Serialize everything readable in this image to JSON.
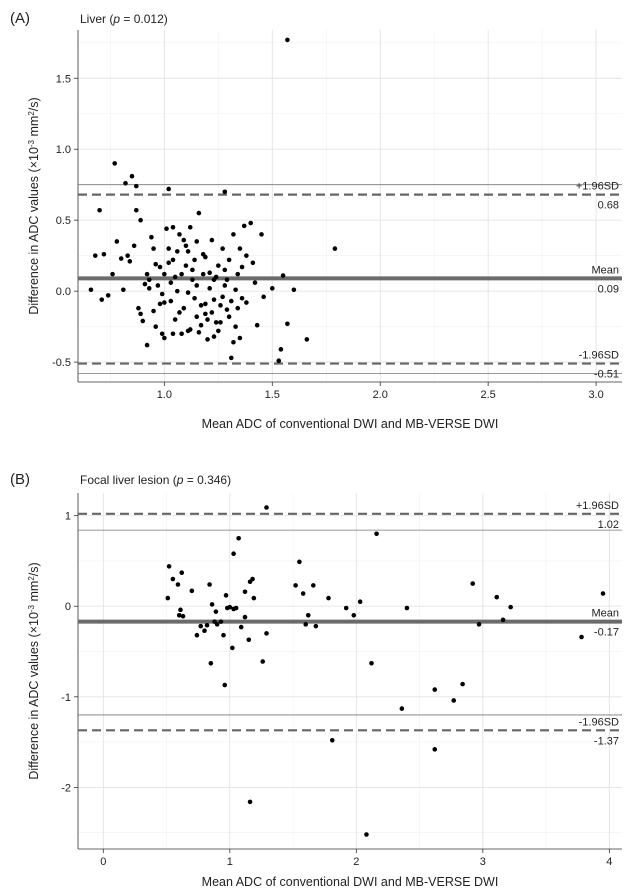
{
  "chart_data": [
    {
      "type": "scatter",
      "panel_label": "(A)",
      "title_prefix": "Liver",
      "title_p_symbol": "p",
      "title_p_value": " = 0.012",
      "xlabel": "Mean ADC of conventional DWI and MB-VERSE DWI",
      "ylabel_prefix": "Difference in ADC values (×10",
      "ylabel_exponent": "-3",
      "ylabel_unit": " mm",
      "ylabel_unit_exponent": "2",
      "ylabel_suffix": "/s)",
      "xlim": [
        0.6,
        3.12
      ],
      "ylim": [
        -0.64,
        1.84
      ],
      "x_ticks": [
        1.0,
        1.5,
        2.0,
        2.5,
        3.0
      ],
      "x_tick_labels": [
        "1.0",
        "1.5",
        "2.0",
        "2.5",
        "3.0"
      ],
      "y_ticks": [
        -0.5,
        0.0,
        0.5,
        1.0,
        1.5
      ],
      "y_tick_labels": [
        "-0.5",
        "0.0",
        "0.5",
        "1.0",
        "1.5"
      ],
      "grid": true,
      "reference_lines": [
        {
          "name": "upper-loa",
          "value": 0.68,
          "style": "dashed",
          "label": "+1.96SD",
          "value_label": "0.68",
          "ci_value": 0.75
        },
        {
          "name": "mean",
          "value": 0.09,
          "style": "solid-thick",
          "label": "Mean",
          "value_label": "0.09"
        },
        {
          "name": "lower-loa",
          "value": -0.51,
          "style": "dashed",
          "label": "-1.96SD",
          "value_label": "-0.51",
          "ci_value": -0.58
        }
      ],
      "points": [
        [
          0.77,
          0.9
        ],
        [
          0.82,
          0.76
        ],
        [
          0.85,
          0.81
        ],
        [
          0.87,
          0.74
        ],
        [
          1.02,
          0.72
        ],
        [
          1.28,
          0.7
        ],
        [
          1.57,
          1.77
        ],
        [
          1.79,
          0.3
        ],
        [
          0.66,
          0.01
        ],
        [
          0.68,
          0.25
        ],
        [
          0.7,
          0.57
        ],
        [
          0.71,
          -0.06
        ],
        [
          0.72,
          0.26
        ],
        [
          0.74,
          -0.03
        ],
        [
          0.76,
          0.12
        ],
        [
          0.78,
          0.35
        ],
        [
          0.8,
          0.23
        ],
        [
          0.81,
          0.01
        ],
        [
          0.83,
          0.25
        ],
        [
          0.84,
          0.21
        ],
        [
          0.86,
          0.32
        ],
        [
          0.87,
          0.57
        ],
        [
          0.88,
          -0.12
        ],
        [
          0.89,
          0.5
        ],
        [
          0.9,
          -0.21
        ],
        [
          0.91,
          0.05
        ],
        [
          0.92,
          0.12
        ],
        [
          0.93,
          0.02
        ],
        [
          0.94,
          0.38
        ],
        [
          0.95,
          0.3
        ],
        [
          0.96,
          0.19
        ],
        [
          0.97,
          0.04
        ],
        [
          0.98,
          -0.09
        ],
        [
          0.99,
          -0.3
        ],
        [
          1.0,
          0.12
        ],
        [
          1.01,
          0.44
        ],
        [
          1.02,
          0.3
        ],
        [
          1.03,
          -0.07
        ],
        [
          1.04,
          0.22
        ],
        [
          1.05,
          0.1
        ],
        [
          1.06,
          0.0
        ],
        [
          1.07,
          0.4
        ],
        [
          1.08,
          0.12
        ],
        [
          1.09,
          -0.12
        ],
        [
          1.1,
          0.32
        ],
        [
          1.11,
          -0.28
        ],
        [
          1.12,
          0.45
        ],
        [
          1.13,
          0.15
        ],
        [
          1.14,
          -0.05
        ],
        [
          1.15,
          0.04
        ],
        [
          1.16,
          0.55
        ],
        [
          1.17,
          -0.1
        ],
        [
          1.18,
          0.12
        ],
        [
          1.19,
          0.24
        ],
        [
          1.2,
          -0.2
        ],
        [
          1.21,
          0.02
        ],
        [
          1.22,
          0.36
        ],
        [
          1.23,
          -0.32
        ],
        [
          1.24,
          0.1
        ],
        [
          1.25,
          0.18
        ],
        [
          1.26,
          -0.1
        ],
        [
          1.27,
          0.3
        ],
        [
          1.28,
          0.04
        ],
        [
          1.29,
          -0.13
        ],
        [
          1.3,
          0.22
        ],
        [
          1.31,
          -0.07
        ],
        [
          1.32,
          0.4
        ],
        [
          1.33,
          -0.25
        ],
        [
          1.34,
          0.12
        ],
        [
          1.35,
          0.3
        ],
        [
          1.36,
          -0.05
        ],
        [
          1.37,
          0.46
        ],
        [
          1.38,
          0.25
        ],
        [
          1.4,
          0.48
        ],
        [
          1.43,
          -0.24
        ],
        [
          1.45,
          0.4
        ],
        [
          1.5,
          0.02
        ],
        [
          1.53,
          -0.49
        ],
        [
          1.54,
          -0.41
        ],
        [
          1.55,
          0.11
        ],
        [
          1.57,
          -0.23
        ],
        [
          1.6,
          0.01
        ],
        [
          1.66,
          -0.34
        ],
        [
          0.92,
          -0.38
        ],
        [
          0.96,
          -0.25
        ],
        [
          1.0,
          -0.33
        ],
        [
          1.04,
          -0.3
        ],
        [
          1.08,
          -0.3
        ],
        [
          1.12,
          -0.27
        ],
        [
          1.16,
          -0.29
        ],
        [
          1.2,
          -0.34
        ],
        [
          1.25,
          -0.28
        ],
        [
          1.31,
          -0.47
        ],
        [
          1.35,
          -0.33
        ],
        [
          0.98,
          0.17
        ],
        [
          1.02,
          0.2
        ],
        [
          1.06,
          0.28
        ],
        [
          1.1,
          0.18
        ],
        [
          1.14,
          0.22
        ],
        [
          1.18,
          0.26
        ],
        [
          1.22,
          -0.15
        ],
        [
          1.26,
          -0.22
        ],
        [
          1.3,
          -0.18
        ],
        [
          1.34,
          -0.12
        ],
        [
          0.95,
          -0.14
        ],
        [
          0.99,
          -0.02
        ],
        [
          1.03,
          0.06
        ],
        [
          1.07,
          -0.15
        ],
        [
          1.11,
          -0.01
        ],
        [
          1.15,
          -0.18
        ],
        [
          1.19,
          -0.09
        ],
        [
          1.23,
          0.08
        ],
        [
          1.27,
          -0.04
        ],
        [
          1.33,
          0.01
        ],
        [
          1.41,
          0.2
        ],
        [
          1.46,
          -0.04
        ],
        [
          1.04,
          0.45
        ],
        [
          1.09,
          0.36
        ],
        [
          1.13,
          0.08
        ],
        [
          1.17,
          -0.24
        ],
        [
          1.21,
          0.13
        ],
        [
          1.24,
          -0.22
        ],
        [
          1.28,
          0.15
        ],
        [
          1.36,
          0.17
        ],
        [
          0.89,
          -0.16
        ],
        [
          0.93,
          0.08
        ],
        [
          1.0,
          -0.08
        ],
        [
          1.05,
          -0.2
        ],
        [
          1.11,
          0.28
        ],
        [
          1.15,
          0.35
        ],
        [
          1.19,
          -0.16
        ],
        [
          1.23,
          -0.06
        ],
        [
          1.29,
          0.08
        ],
        [
          1.32,
          -0.36
        ],
        [
          1.38,
          -0.08
        ],
        [
          1.42,
          0.06
        ]
      ]
    },
    {
      "type": "scatter",
      "panel_label": "(B)",
      "title_prefix": "Focal liver lesion",
      "title_p_symbol": "p",
      "title_p_value": " = 0.346",
      "xlabel": "Mean ADC of conventional DWI and MB-VERSE DWI",
      "ylabel_prefix": "Difference in ADC values (×10",
      "ylabel_exponent": "-3",
      "ylabel_unit": " mm",
      "ylabel_unit_exponent": "2",
      "ylabel_suffix": "/s)",
      "xlim": [
        -0.2,
        4.1
      ],
      "ylim": [
        -2.68,
        1.25
      ],
      "x_ticks": [
        0,
        1,
        2,
        3,
        4
      ],
      "x_tick_labels": [
        "0",
        "1",
        "2",
        "3",
        "4"
      ],
      "y_ticks": [
        -2,
        -1,
        0,
        1
      ],
      "y_tick_labels": [
        "-2",
        "-1",
        "0",
        "1"
      ],
      "grid": true,
      "reference_lines": [
        {
          "name": "upper-loa",
          "value": 1.02,
          "style": "dashed",
          "label": "+1.96SD",
          "value_label": "1.02",
          "ci_value": 0.84
        },
        {
          "name": "mean",
          "value": -0.17,
          "style": "solid-thick",
          "label": "Mean",
          "value_label": "-0.17"
        },
        {
          "name": "lower-loa",
          "value": -1.37,
          "style": "dashed",
          "label": "-1.96SD",
          "value_label": "-1.37",
          "ci_value": -1.2
        }
      ],
      "points": [
        [
          0.52,
          0.44
        ],
        [
          0.51,
          0.09
        ],
        [
          0.55,
          0.3
        ],
        [
          0.59,
          0.24
        ],
        [
          0.6,
          -0.1
        ],
        [
          0.61,
          -0.04
        ],
        [
          0.62,
          0.37
        ],
        [
          0.63,
          -0.11
        ],
        [
          0.7,
          0.17
        ],
        [
          0.74,
          -0.32
        ],
        [
          0.77,
          -0.22
        ],
        [
          0.8,
          -0.27
        ],
        [
          0.82,
          -0.21
        ],
        [
          0.84,
          0.24
        ],
        [
          0.85,
          -0.63
        ],
        [
          0.86,
          0.02
        ],
        [
          0.88,
          -0.17
        ],
        [
          0.89,
          -0.06
        ],
        [
          0.9,
          -0.2
        ],
        [
          0.93,
          -0.17
        ],
        [
          0.95,
          -0.32
        ],
        [
          0.96,
          -0.87
        ],
        [
          0.98,
          -0.02
        ],
        [
          1.0,
          -0.01
        ],
        [
          1.02,
          -0.46
        ],
        [
          1.03,
          0.58
        ],
        [
          1.05,
          -0.02
        ],
        [
          1.07,
          0.75
        ],
        [
          1.09,
          -0.23
        ],
        [
          1.12,
          0.16
        ],
        [
          1.15,
          -0.37
        ],
        [
          1.16,
          0.27
        ],
        [
          1.18,
          0.3
        ],
        [
          1.19,
          0.09
        ],
        [
          1.16,
          -2.16
        ],
        [
          1.26,
          -0.61
        ],
        [
          1.29,
          -0.3
        ],
        [
          1.29,
          1.09
        ],
        [
          1.52,
          0.23
        ],
        [
          1.55,
          0.49
        ],
        [
          1.58,
          0.14
        ],
        [
          1.6,
          -0.2
        ],
        [
          1.62,
          -0.1
        ],
        [
          1.66,
          0.23
        ],
        [
          1.68,
          -0.22
        ],
        [
          1.78,
          0.09
        ],
        [
          1.81,
          -1.48
        ],
        [
          1.92,
          -0.02
        ],
        [
          1.98,
          -0.1
        ],
        [
          2.03,
          0.05
        ],
        [
          2.08,
          -2.52
        ],
        [
          2.12,
          -0.63
        ],
        [
          2.16,
          0.8
        ],
        [
          2.36,
          -1.13
        ],
        [
          2.4,
          -0.02
        ],
        [
          2.62,
          -0.92
        ],
        [
          2.62,
          -1.58
        ],
        [
          2.77,
          -1.04
        ],
        [
          2.84,
          -0.86
        ],
        [
          2.92,
          0.25
        ],
        [
          2.97,
          -0.2
        ],
        [
          3.11,
          0.1
        ],
        [
          3.16,
          -0.15
        ],
        [
          3.22,
          -0.01
        ],
        [
          3.78,
          -0.34
        ],
        [
          3.95,
          0.14
        ],
        [
          1.03,
          -0.03
        ],
        [
          0.97,
          0.12
        ],
        [
          1.12,
          -0.12
        ]
      ]
    }
  ]
}
